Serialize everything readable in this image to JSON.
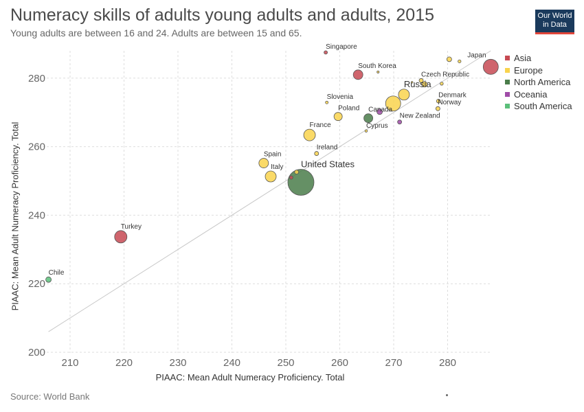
{
  "header": {
    "title": "Numeracy skills of adults young adults and adults, 2015",
    "subtitle": "Young adults are between 16 and 24. Adults are between 15 and 65."
  },
  "logo": {
    "line1": "Our World",
    "line2": "in Data"
  },
  "footer": {
    "source": "Source: World Bank"
  },
  "chart_data": {
    "type": "scatter",
    "xlabel": "PIAAC: Mean Adult Numeracy Proficiency. Total",
    "ylabel": "PIAAC: Mean Adult Numeracy Proficiency. Total",
    "xlim": [
      205,
      288
    ],
    "ylim": [
      200,
      288
    ],
    "x_ticks": [
      210,
      220,
      230,
      240,
      250,
      260,
      270,
      280
    ],
    "y_ticks": [
      200,
      220,
      240,
      260,
      280
    ],
    "grid": true,
    "legend_position": "right",
    "reference_line": {
      "from": [
        206,
        206
      ],
      "to": [
        288,
        288
      ]
    },
    "legend": [
      {
        "name": "Asia",
        "color": "#c74a53"
      },
      {
        "name": "Europe",
        "color": "#f9d34d"
      },
      {
        "name": "North America",
        "color": "#4a7d4a"
      },
      {
        "name": "Oceania",
        "color": "#a04ca8"
      },
      {
        "name": "South America",
        "color": "#5bbf7a"
      }
    ],
    "points": [
      {
        "label": "Japan",
        "region": "Asia",
        "x": 288.0,
        "y": 283.3,
        "r": 11
      },
      {
        "label": "",
        "region": "Europe",
        "x": 280.3,
        "y": 285.5,
        "r": 3.5
      },
      {
        "label": "",
        "region": "Europe",
        "x": 282.2,
        "y": 284.9,
        "r": 2.2
      },
      {
        "label": "Singapore",
        "region": "Asia",
        "x": 257.4,
        "y": 287.5,
        "r": 2.5
      },
      {
        "label": "South Korea",
        "region": "Asia",
        "x": 263.4,
        "y": 281.0,
        "r": 7
      },
      {
        "label": "",
        "region": "Europe",
        "x": 267.1,
        "y": 281.8,
        "r": 1.6
      },
      {
        "label": "Czech Republic",
        "region": "Europe",
        "x": 275.1,
        "y": 279.3,
        "r": 3
      },
      {
        "label": "",
        "region": "Europe",
        "x": 273.4,
        "y": 278.8,
        "r": 1.3
      },
      {
        "label": "",
        "region": "Europe",
        "x": 275.7,
        "y": 278.2,
        "r": 4
      },
      {
        "label": "",
        "region": "Europe",
        "x": 278.9,
        "y": 278.4,
        "r": 2.3
      },
      {
        "label": "Russia",
        "region": "Europe",
        "x": 271.9,
        "y": 275.2,
        "r": 8
      },
      {
        "label": "",
        "region": "Europe",
        "x": 269.9,
        "y": 272.6,
        "r": 11
      },
      {
        "label": "Denmark",
        "region": "Europe",
        "x": 278.3,
        "y": 273.3,
        "r": 2.8
      },
      {
        "label": "Norway",
        "region": "Europe",
        "x": 278.2,
        "y": 271.1,
        "r": 3
      },
      {
        "label": "Slovenia",
        "region": "Europe",
        "x": 257.6,
        "y": 272.9,
        "r": 2
      },
      {
        "label": "Poland",
        "region": "Europe",
        "x": 259.7,
        "y": 268.8,
        "r": 6
      },
      {
        "label": "Canada",
        "region": "North America",
        "x": 265.3,
        "y": 268.3,
        "r": 6.5
      },
      {
        "label": "",
        "region": "Oceania",
        "x": 267.4,
        "y": 270.2,
        "r": 4
      },
      {
        "label": "New Zealand",
        "region": "Oceania",
        "x": 271.1,
        "y": 267.2,
        "r": 3
      },
      {
        "label": "Cyprus",
        "region": "Europe",
        "x": 264.9,
        "y": 264.6,
        "r": 1.8
      },
      {
        "label": "France",
        "region": "Europe",
        "x": 254.4,
        "y": 263.4,
        "r": 8.5
      },
      {
        "label": "Ireland",
        "region": "Europe",
        "x": 255.7,
        "y": 258.0,
        "r": 3
      },
      {
        "label": "Spain",
        "region": "Europe",
        "x": 245.9,
        "y": 255.2,
        "r": 7
      },
      {
        "label": "",
        "region": "Europe",
        "x": 252.0,
        "y": 252.6,
        "r": 3
      },
      {
        "label": "Italy",
        "region": "Europe",
        "x": 247.2,
        "y": 251.3,
        "r": 8
      },
      {
        "label": "",
        "region": "Asia",
        "x": 251.0,
        "y": 251.0,
        "r": 2.5
      },
      {
        "label": "United States",
        "region": "North America",
        "x": 252.8,
        "y": 249.6,
        "r": 19
      },
      {
        "label": "Turkey",
        "region": "Asia",
        "x": 219.4,
        "y": 233.7,
        "r": 9
      },
      {
        "label": "Chile",
        "region": "South America",
        "x": 206.0,
        "y": 221.2,
        "r": 4
      }
    ]
  }
}
